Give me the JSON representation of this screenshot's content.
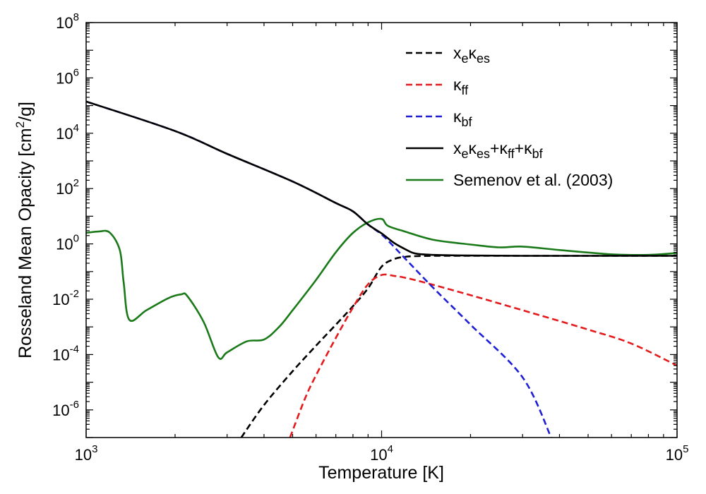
{
  "chart_data": {
    "type": "line",
    "xscale": "log",
    "yscale": "log",
    "xlabel": "Temperature [K]",
    "ylabel": "Rosseland Mean Opacity [cm²/g]",
    "ylabel_parts": {
      "base": "Rosseland Mean Opacity [cm",
      "sup": "2",
      "tail": "/g]"
    },
    "xlim": [
      1000,
      100000
    ],
    "ylim": [
      1e-07,
      100000000.0
    ],
    "xticks": [
      {
        "value": 1000,
        "base": "10",
        "exp": "3"
      },
      {
        "value": 10000,
        "base": "10",
        "exp": "4"
      },
      {
        "value": 100000,
        "base": "10",
        "exp": "5"
      }
    ],
    "yticks": [
      {
        "value": 1e-06,
        "base": "10",
        "exp": "-6"
      },
      {
        "value": 0.0001,
        "base": "10",
        "exp": "-4"
      },
      {
        "value": 0.01,
        "base": "10",
        "exp": "-2"
      },
      {
        "value": 1,
        "base": "10",
        "exp": "0"
      },
      {
        "value": 100.0,
        "base": "10",
        "exp": "2"
      },
      {
        "value": 10000.0,
        "base": "10",
        "exp": "4"
      },
      {
        "value": 1000000.0,
        "base": "10",
        "exp": "6"
      },
      {
        "value": 100000000.0,
        "base": "10",
        "exp": "8"
      }
    ],
    "legend_position": "top-right",
    "series": [
      {
        "name": "x_e κ_es",
        "legend_parts": [
          [
            "x",
            ""
          ],
          [
            "e",
            "sub"
          ],
          [
            "κ",
            ""
          ],
          [
            "es",
            "sub"
          ]
        ],
        "color": "#000000",
        "dash": true,
        "x": [
          3350,
          4000,
          5000,
          6000,
          7000,
          8000,
          9000,
          10000,
          11000,
          12000,
          13000,
          15000,
          20000,
          30000,
          50000,
          100000
        ],
        "y": [
          1e-07,
          1.5e-06,
          2.5e-05,
          0.00021,
          0.0012,
          0.0056,
          0.025,
          0.15,
          0.28,
          0.34,
          0.36,
          0.37,
          0.37,
          0.37,
          0.37,
          0.37
        ]
      },
      {
        "name": "κ_ff",
        "legend_parts": [
          [
            "κ",
            ""
          ],
          [
            "ff",
            "sub"
          ]
        ],
        "color": "#e41a1c",
        "dash": true,
        "x": [
          4900,
          5500,
          6000,
          7000,
          8000,
          9000,
          10000,
          11000,
          12000,
          14000,
          20000,
          30000,
          50000,
          70000,
          100000
        ],
        "y": [
          1e-07,
          2.5e-06,
          1.8e-05,
          0.0004,
          0.005,
          0.035,
          0.075,
          0.07,
          0.06,
          0.04,
          0.014,
          0.004,
          0.0008,
          0.00025,
          4e-05
        ]
      },
      {
        "name": "κ_bf",
        "legend_parts": [
          [
            "κ",
            ""
          ],
          [
            "bf",
            "sub"
          ]
        ],
        "color": "#1f1fd6",
        "dash": true,
        "x": [
          1000,
          2000,
          3000,
          5000,
          7000,
          8000,
          9000,
          10000,
          11000,
          12000,
          15000,
          20000,
          30000,
          37500
        ],
        "y": [
          140000.0,
          12000.0,
          1800.0,
          180,
          30,
          15,
          5,
          2.2,
          0.8,
          0.3,
          0.025,
          0.0012,
          1.5e-05,
          1e-07
        ]
      },
      {
        "name": "x_e κ_es + κ_ff + κ_bf",
        "legend_parts": [
          [
            "x",
            ""
          ],
          [
            "e",
            "sub"
          ],
          [
            "κ",
            ""
          ],
          [
            "es",
            "sub"
          ],
          [
            "+κ",
            ""
          ],
          [
            "ff",
            "sub"
          ],
          [
            "+κ",
            ""
          ],
          [
            "bf",
            "sub"
          ]
        ],
        "color": "#000000",
        "dash": false,
        "x": [
          1000,
          2000,
          3000,
          5000,
          7000,
          8000,
          9000,
          10000,
          11000,
          12000,
          13000,
          15000,
          20000,
          30000,
          50000,
          100000
        ],
        "y": [
          140000.0,
          12000.0,
          1800.0,
          180,
          30,
          15,
          5,
          2.4,
          1.1,
          0.65,
          0.45,
          0.4,
          0.38,
          0.37,
          0.37,
          0.37
        ]
      },
      {
        "name": "Semenov et al. (2003)",
        "legend_parts": [
          [
            "Semenov et al. (2003)",
            ""
          ]
        ],
        "color": "#1a7a1a",
        "dash": false,
        "x": [
          1000,
          1100,
          1200,
          1300,
          1340,
          1400,
          1600,
          1900,
          2100,
          2200,
          2500,
          2800,
          3000,
          3500,
          4000,
          4500,
          5000,
          6000,
          7000,
          8000,
          9000,
          10000,
          10500,
          12000,
          15000,
          20000,
          25000,
          30000,
          40000,
          60000,
          80000,
          100000
        ],
        "y": [
          2.5,
          2.8,
          2.6,
          0.6,
          0.04,
          0.0018,
          0.004,
          0.011,
          0.015,
          0.013,
          0.0015,
          8e-05,
          0.00012,
          0.0003,
          0.00035,
          0.001,
          0.004,
          0.05,
          0.5,
          2.5,
          6,
          8,
          4.5,
          2.8,
          1.4,
          0.95,
          0.75,
          0.8,
          0.6,
          0.42,
          0.4,
          0.47
        ]
      }
    ]
  }
}
